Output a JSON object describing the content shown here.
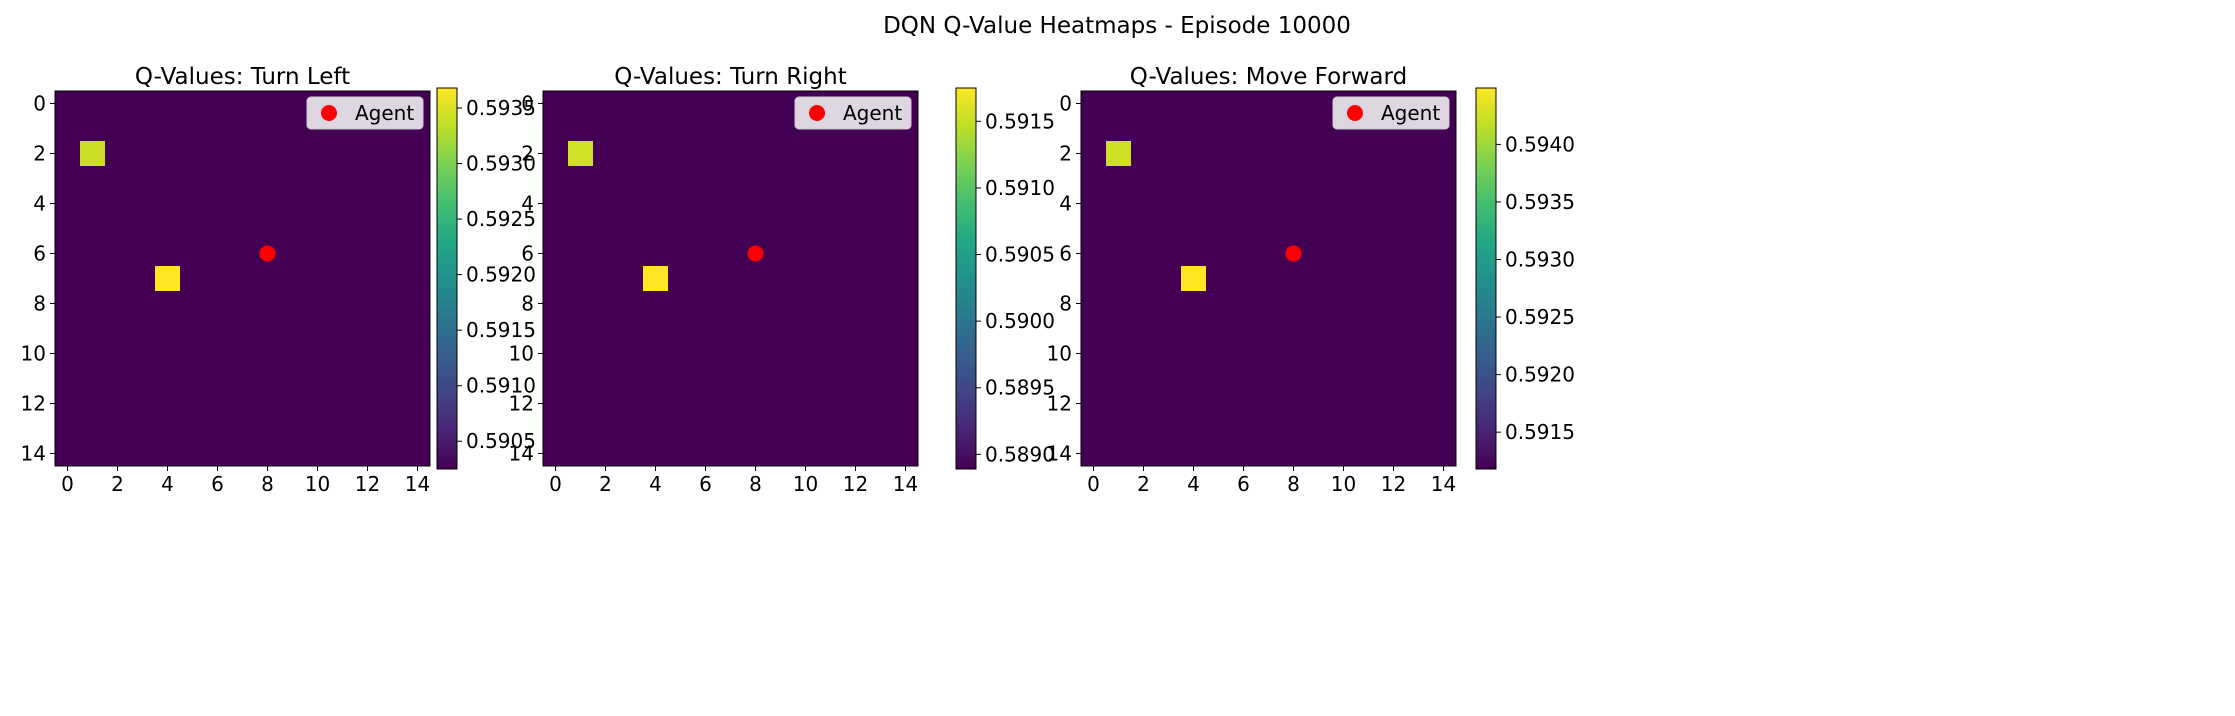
{
  "figure": {
    "title": "DQN Q-Value Heatmaps - Episode 10000"
  },
  "chart_data": [
    {
      "type": "heatmap",
      "title": "Q-Values: Turn Left",
      "grid": {
        "rows": 15,
        "cols": 15
      },
      "base_value": 0.59025,
      "cells": [
        {
          "row": 2,
          "col": 1,
          "value": 0.5934
        },
        {
          "row": 7,
          "col": 4,
          "value": 0.59368
        }
      ],
      "agent": {
        "x": 8,
        "y": 6
      },
      "legend": {
        "label": "Agent",
        "position": "top-right"
      },
      "x_ticks": [
        0,
        2,
        4,
        6,
        8,
        10,
        12,
        14
      ],
      "y_ticks": [
        0,
        2,
        4,
        6,
        8,
        10,
        12,
        14
      ],
      "colorbar": {
        "min": 0.59025,
        "max": 0.59368,
        "ticks": [
          "0.5905",
          "0.5910",
          "0.5915",
          "0.5920",
          "0.5925",
          "0.5930",
          "0.5935"
        ]
      }
    },
    {
      "type": "heatmap",
      "title": "Q-Values: Turn Right",
      "grid": {
        "rows": 15,
        "cols": 15
      },
      "base_value": 0.58889,
      "cells": [
        {
          "row": 2,
          "col": 1,
          "value": 0.59155
        },
        {
          "row": 7,
          "col": 4,
          "value": 0.59175
        }
      ],
      "agent": {
        "x": 8,
        "y": 6
      },
      "legend": {
        "label": "Agent",
        "position": "top-right"
      },
      "x_ticks": [
        0,
        2,
        4,
        6,
        8,
        10,
        12,
        14
      ],
      "y_ticks": [
        0,
        2,
        4,
        6,
        8,
        10,
        12,
        14
      ],
      "colorbar": {
        "min": 0.58889,
        "max": 0.59175,
        "ticks": [
          "0.5890",
          "0.5895",
          "0.5900",
          "0.5905",
          "0.5910",
          "0.5915"
        ]
      }
    },
    {
      "type": "heatmap",
      "title": "Q-Values: Move Forward",
      "grid": {
        "rows": 15,
        "cols": 15
      },
      "base_value": 0.59118,
      "cells": [
        {
          "row": 2,
          "col": 1,
          "value": 0.59425
        },
        {
          "row": 7,
          "col": 4,
          "value": 0.59449
        }
      ],
      "agent": {
        "x": 8,
        "y": 6
      },
      "legend": {
        "label": "Agent",
        "position": "top-right"
      },
      "x_ticks": [
        0,
        2,
        4,
        6,
        8,
        10,
        12,
        14
      ],
      "y_ticks": [
        0,
        2,
        4,
        6,
        8,
        10,
        12,
        14
      ],
      "colorbar": {
        "min": 0.59118,
        "max": 0.59449,
        "ticks": [
          "0.5915",
          "0.5920",
          "0.5925",
          "0.5930",
          "0.5935",
          "0.5940"
        ]
      }
    }
  ],
  "colors": {
    "colormap": "viridis",
    "agent": "#ff0000",
    "legend_bg": "#ddd6e0"
  }
}
